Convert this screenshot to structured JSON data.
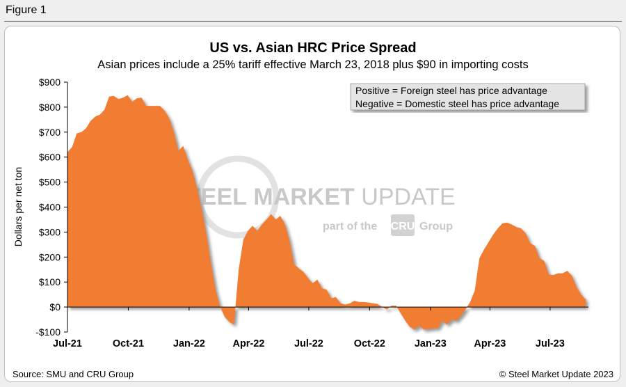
{
  "figure_label": "Figure 1",
  "source": "Source: SMU and CRU Group",
  "copyright": "© Steel Market Update 2023",
  "watermark": {
    "brand_bold": "STEEL",
    "brand_mid": "MARKET",
    "brand_light": "UPDATE",
    "tagline_pre": "part of the",
    "tagline_logo": "CRU",
    "tagline_post": "Group"
  },
  "colors": {
    "series": "#f07d32",
    "shadow": "#9a9a9a",
    "axis": "#000000",
    "watermark": "#c8c8c8"
  },
  "chart_data": {
    "type": "area",
    "title": "US vs. Asian HRC Price Spread",
    "subtitle": "Asian prices include a 25% tariff effective March 23, 2018 plus $90 in importing costs",
    "ylabel": "Dollars per net ton",
    "xlabel": "",
    "ylim": [
      -100,
      900
    ],
    "yticks": [
      -100,
      0,
      100,
      200,
      300,
      400,
      500,
      600,
      700,
      800,
      900
    ],
    "ytick_labels": [
      "-$100",
      "$0",
      "$100",
      "$200",
      "$300",
      "$400",
      "$500",
      "$600",
      "$700",
      "$800",
      "$900"
    ],
    "xlim": [
      "2021-07-01",
      "2023-08-28"
    ],
    "xticks": [
      "2021-07-01",
      "2021-10-01",
      "2022-01-01",
      "2022-04-01",
      "2022-07-01",
      "2022-10-01",
      "2023-01-01",
      "2023-04-01",
      "2023-07-01"
    ],
    "xtick_labels": [
      "Jul-21",
      "Oct-21",
      "Jan-22",
      "Apr-22",
      "Jul-22",
      "Oct-22",
      "Jan-23",
      "Apr-23",
      "Jul-23"
    ],
    "grid": false,
    "legend_box": [
      "Positive = Foreign steel has price advantage",
      "Negative = Domestic steel has price advantage"
    ],
    "legend_position": "top-right",
    "series": [
      {
        "values": [
          [
            "2021-07-01",
            620
          ],
          [
            "2021-07-08",
            640
          ],
          [
            "2021-07-15",
            695
          ],
          [
            "2021-07-22",
            700
          ],
          [
            "2021-07-29",
            715
          ],
          [
            "2021-08-05",
            745
          ],
          [
            "2021-08-12",
            762
          ],
          [
            "2021-08-19",
            770
          ],
          [
            "2021-08-26",
            790
          ],
          [
            "2021-09-02",
            842
          ],
          [
            "2021-09-09",
            845
          ],
          [
            "2021-09-16",
            832
          ],
          [
            "2021-09-23",
            838
          ],
          [
            "2021-09-30",
            848
          ],
          [
            "2021-10-07",
            822
          ],
          [
            "2021-10-14",
            835
          ],
          [
            "2021-10-21",
            838
          ],
          [
            "2021-10-28",
            805
          ],
          [
            "2021-11-04",
            805
          ],
          [
            "2021-11-11",
            805
          ],
          [
            "2021-11-18",
            805
          ],
          [
            "2021-11-25",
            785
          ],
          [
            "2021-12-02",
            755
          ],
          [
            "2021-12-09",
            700
          ],
          [
            "2021-12-16",
            625
          ],
          [
            "2021-12-23",
            645
          ],
          [
            "2021-12-30",
            590
          ],
          [
            "2022-01-06",
            545
          ],
          [
            "2022-01-13",
            475
          ],
          [
            "2022-01-20",
            390
          ],
          [
            "2022-01-27",
            295
          ],
          [
            "2022-02-03",
            175
          ],
          [
            "2022-02-10",
            70
          ],
          [
            "2022-02-17",
            0
          ],
          [
            "2022-02-24",
            -40
          ],
          [
            "2022-03-03",
            -60
          ],
          [
            "2022-03-10",
            -70
          ],
          [
            "2022-03-14",
            60
          ],
          [
            "2022-03-17",
            150
          ],
          [
            "2022-03-24",
            270
          ],
          [
            "2022-03-31",
            305
          ],
          [
            "2022-04-07",
            325
          ],
          [
            "2022-04-14",
            305
          ],
          [
            "2022-04-21",
            330
          ],
          [
            "2022-04-28",
            350
          ],
          [
            "2022-05-05",
            372
          ],
          [
            "2022-05-12",
            350
          ],
          [
            "2022-05-19",
            365
          ],
          [
            "2022-05-26",
            330
          ],
          [
            "2022-06-02",
            265
          ],
          [
            "2022-06-09",
            170
          ],
          [
            "2022-06-16",
            155
          ],
          [
            "2022-06-23",
            140
          ],
          [
            "2022-06-30",
            115
          ],
          [
            "2022-07-07",
            95
          ],
          [
            "2022-07-14",
            110
          ],
          [
            "2022-07-21",
            75
          ],
          [
            "2022-07-28",
            70
          ],
          [
            "2022-08-04",
            35
          ],
          [
            "2022-08-11",
            40
          ],
          [
            "2022-08-18",
            15
          ],
          [
            "2022-08-25",
            10
          ],
          [
            "2022-09-01",
            15
          ],
          [
            "2022-09-08",
            25
          ],
          [
            "2022-09-15",
            20
          ],
          [
            "2022-09-22",
            20
          ],
          [
            "2022-09-29",
            18
          ],
          [
            "2022-10-06",
            15
          ],
          [
            "2022-10-13",
            12
          ],
          [
            "2022-10-20",
            0
          ],
          [
            "2022-10-27",
            -10
          ],
          [
            "2022-11-03",
            5
          ],
          [
            "2022-11-10",
            5
          ],
          [
            "2022-11-17",
            -25
          ],
          [
            "2022-11-24",
            -55
          ],
          [
            "2022-12-01",
            -80
          ],
          [
            "2022-12-08",
            -90
          ],
          [
            "2022-12-15",
            -75
          ],
          [
            "2022-12-22",
            -90
          ],
          [
            "2022-12-29",
            -88
          ],
          [
            "2023-01-05",
            -85
          ],
          [
            "2023-01-12",
            -85
          ],
          [
            "2023-01-19",
            -55
          ],
          [
            "2023-01-26",
            -70
          ],
          [
            "2023-02-02",
            -50
          ],
          [
            "2023-02-09",
            -55
          ],
          [
            "2023-02-16",
            -35
          ],
          [
            "2023-02-23",
            -10
          ],
          [
            "2023-03-02",
            20
          ],
          [
            "2023-03-09",
            65
          ],
          [
            "2023-03-16",
            195
          ],
          [
            "2023-03-23",
            230
          ],
          [
            "2023-03-30",
            260
          ],
          [
            "2023-04-06",
            290
          ],
          [
            "2023-04-13",
            315
          ],
          [
            "2023-04-20",
            335
          ],
          [
            "2023-04-27",
            338
          ],
          [
            "2023-05-04",
            330
          ],
          [
            "2023-05-11",
            320
          ],
          [
            "2023-05-18",
            315
          ],
          [
            "2023-05-25",
            295
          ],
          [
            "2023-06-01",
            255
          ],
          [
            "2023-06-08",
            245
          ],
          [
            "2023-06-15",
            195
          ],
          [
            "2023-06-22",
            185
          ],
          [
            "2023-06-29",
            130
          ],
          [
            "2023-07-06",
            128
          ],
          [
            "2023-07-13",
            135
          ],
          [
            "2023-07-20",
            135
          ],
          [
            "2023-07-27",
            145
          ],
          [
            "2023-08-03",
            125
          ],
          [
            "2023-08-10",
            80
          ],
          [
            "2023-08-17",
            50
          ],
          [
            "2023-08-24",
            30
          ]
        ]
      }
    ]
  }
}
